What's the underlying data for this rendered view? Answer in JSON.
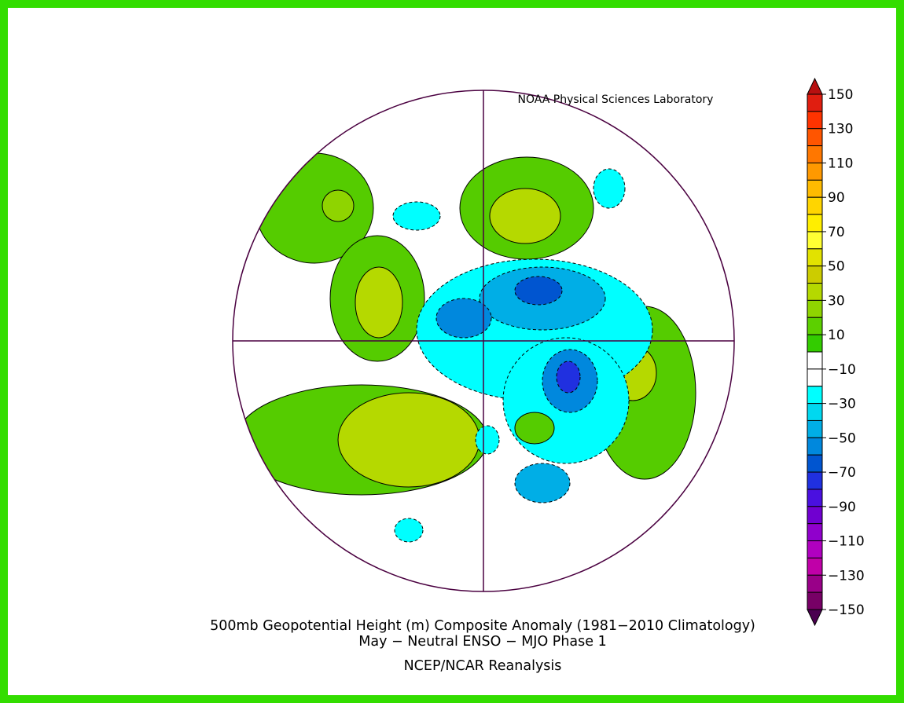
{
  "credit": "NOAA Physical Sciences Laboratory",
  "title": "500mb Geopotential Height (m) Composite Anomaly (1981−2010 Climatology)",
  "subtitle": "May − Neutral ENSO − MJO Phase 1",
  "source": "NCEP/NCAR Reanalysis",
  "colorbar": {
    "ticks": [
      150,
      130,
      110,
      90,
      70,
      50,
      30,
      10,
      {
        "value": -10,
        "label": "−10"
      },
      {
        "value": -30,
        "label": "−30"
      },
      {
        "value": -50,
        "label": "−50"
      },
      {
        "value": -70,
        "label": "−70"
      },
      {
        "value": -90,
        "label": "−90"
      },
      {
        "value": -110,
        "label": "−110"
      },
      {
        "value": -130,
        "label": "−130"
      },
      {
        "value": -150,
        "label": "−150"
      }
    ],
    "colors": [
      "#b81010",
      "#e01e10",
      "#ff3300",
      "#ff5500",
      "#ff7700",
      "#ff9900",
      "#ffbb00",
      "#ffd500",
      "#ffee00",
      "#ffff33",
      "#e2e200",
      "#cccc00",
      "#b5d900",
      "#8fd400",
      "#5cd000",
      "#33cc00",
      "#ffffff",
      "#ffffff",
      "#00ffff",
      "#00d8f0",
      "#00aee6",
      "#0088dd",
      "#0055d0",
      "#2030e0",
      "#4a10e0",
      "#7000d0",
      "#9000cc",
      "#b000c0",
      "#c000a8",
      "#990088",
      "#770066",
      "#4a0050"
    ]
  }
}
